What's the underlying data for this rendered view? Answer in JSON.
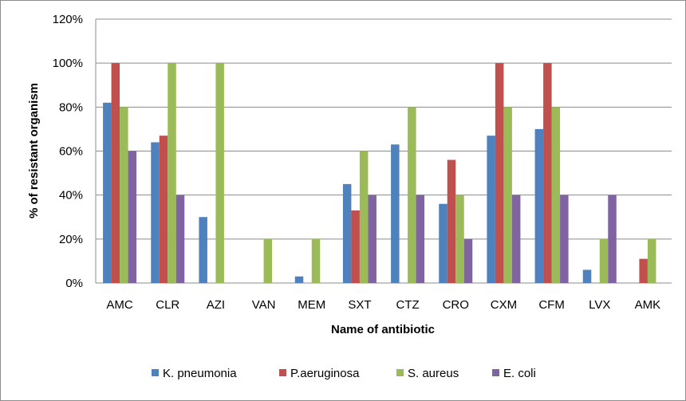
{
  "chart_data": {
    "type": "bar",
    "title": "",
    "xlabel": "Name of antibiotic",
    "ylabel": "% of resistant  organism",
    "ylim": [
      0,
      120
    ],
    "y_ticks": [
      0,
      20,
      40,
      60,
      80,
      100,
      120
    ],
    "y_tick_labels": [
      "0%",
      "20%",
      "40%",
      "60%",
      "80%",
      "100%",
      "120%"
    ],
    "grid": true,
    "legend_position": "bottom",
    "categories": [
      "AMC",
      "CLR",
      "AZI",
      "VAN",
      "MEM",
      "SXT",
      "CTZ",
      "CRO",
      "CXM",
      "CFM",
      "LVX",
      "AMK"
    ],
    "series": [
      {
        "name": "K. pneumonia",
        "color": "#4f81bd",
        "values": [
          82,
          64,
          30,
          0,
          3,
          45,
          63,
          36,
          67,
          70,
          6,
          0
        ]
      },
      {
        "name": "P.aeruginosa",
        "color": "#c0504d",
        "values": [
          100,
          67,
          0,
          0,
          0,
          33,
          0,
          56,
          100,
          100,
          0,
          11
        ]
      },
      {
        "name": "S. aureus",
        "color": "#9bbb59",
        "values": [
          80,
          100,
          100,
          20,
          20,
          60,
          80,
          40,
          80,
          80,
          20,
          20
        ]
      },
      {
        "name": "E. coli",
        "color": "#8064a2",
        "values": [
          60,
          40,
          0,
          0,
          0,
          40,
          40,
          20,
          40,
          40,
          40,
          0
        ]
      }
    ]
  }
}
